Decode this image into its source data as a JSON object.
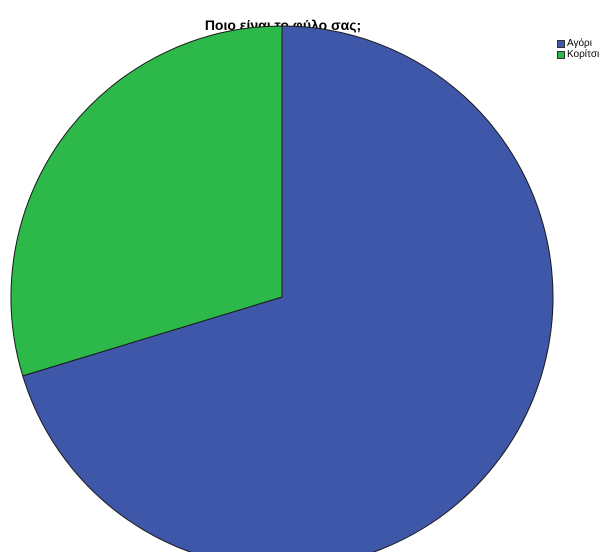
{
  "chart_data": {
    "type": "pie",
    "title": "Ποιο είναι το φύλο σας;",
    "categories": [
      "Αγόρι",
      "Κορίτσι"
    ],
    "values": [
      70.3,
      29.7
    ],
    "colors": [
      "#3f57a8",
      "#2db84a"
    ],
    "start_angle_deg": 0,
    "direction": "clockwise",
    "legend": {
      "position": "top-right",
      "items": [
        {
          "label": "Αγόρι",
          "color": "#3f57a8"
        },
        {
          "label": "Κορίτσι",
          "color": "#2db84a"
        }
      ]
    }
  }
}
